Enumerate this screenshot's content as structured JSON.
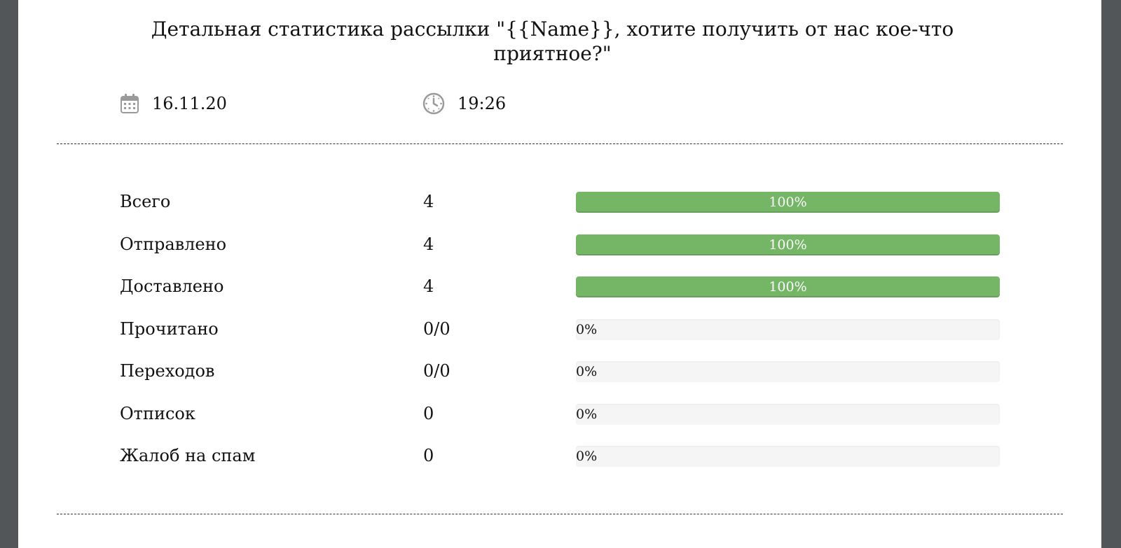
{
  "report": {
    "title": "Детальная статистика рассылки \"{{Name}}, хотите получить от нас кое-что приятное?\"",
    "date": "16.11.20",
    "time": "19:26",
    "date_icon": "calendar-icon",
    "time_icon": "clock-icon"
  },
  "colors": {
    "bar_fill": "#74b566",
    "bar_track": "#f5f5f5"
  },
  "stats": [
    {
      "label": "Всего",
      "value": "4",
      "percent": 100,
      "percent_label": "100%"
    },
    {
      "label": "Отправлено",
      "value": "4",
      "percent": 100,
      "percent_label": "100%"
    },
    {
      "label": "Доставлено",
      "value": "4",
      "percent": 100,
      "percent_label": "100%"
    },
    {
      "label": "Прочитано",
      "value": "0/0",
      "percent": 0,
      "percent_label": "0%"
    },
    {
      "label": "Переходов",
      "value": "0/0",
      "percent": 0,
      "percent_label": "0%"
    },
    {
      "label": "Отписок",
      "value": "0",
      "percent": 0,
      "percent_label": "0%"
    },
    {
      "label": "Жалоб на спам",
      "value": "0",
      "percent": 0,
      "percent_label": "0%"
    }
  ]
}
